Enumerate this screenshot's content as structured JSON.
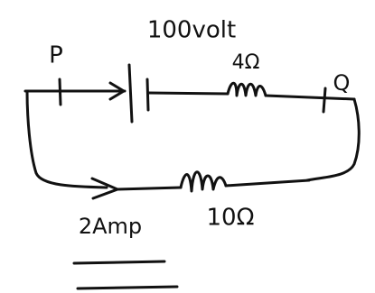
{
  "diagram": {
    "battery": {
      "label": "100volt"
    },
    "nodes": [
      {
        "label": "P"
      },
      {
        "label": "Q"
      }
    ],
    "resistors": [
      {
        "label": "4Ω"
      },
      {
        "label": "10Ω"
      }
    ],
    "current": {
      "label": "2Amp"
    }
  }
}
